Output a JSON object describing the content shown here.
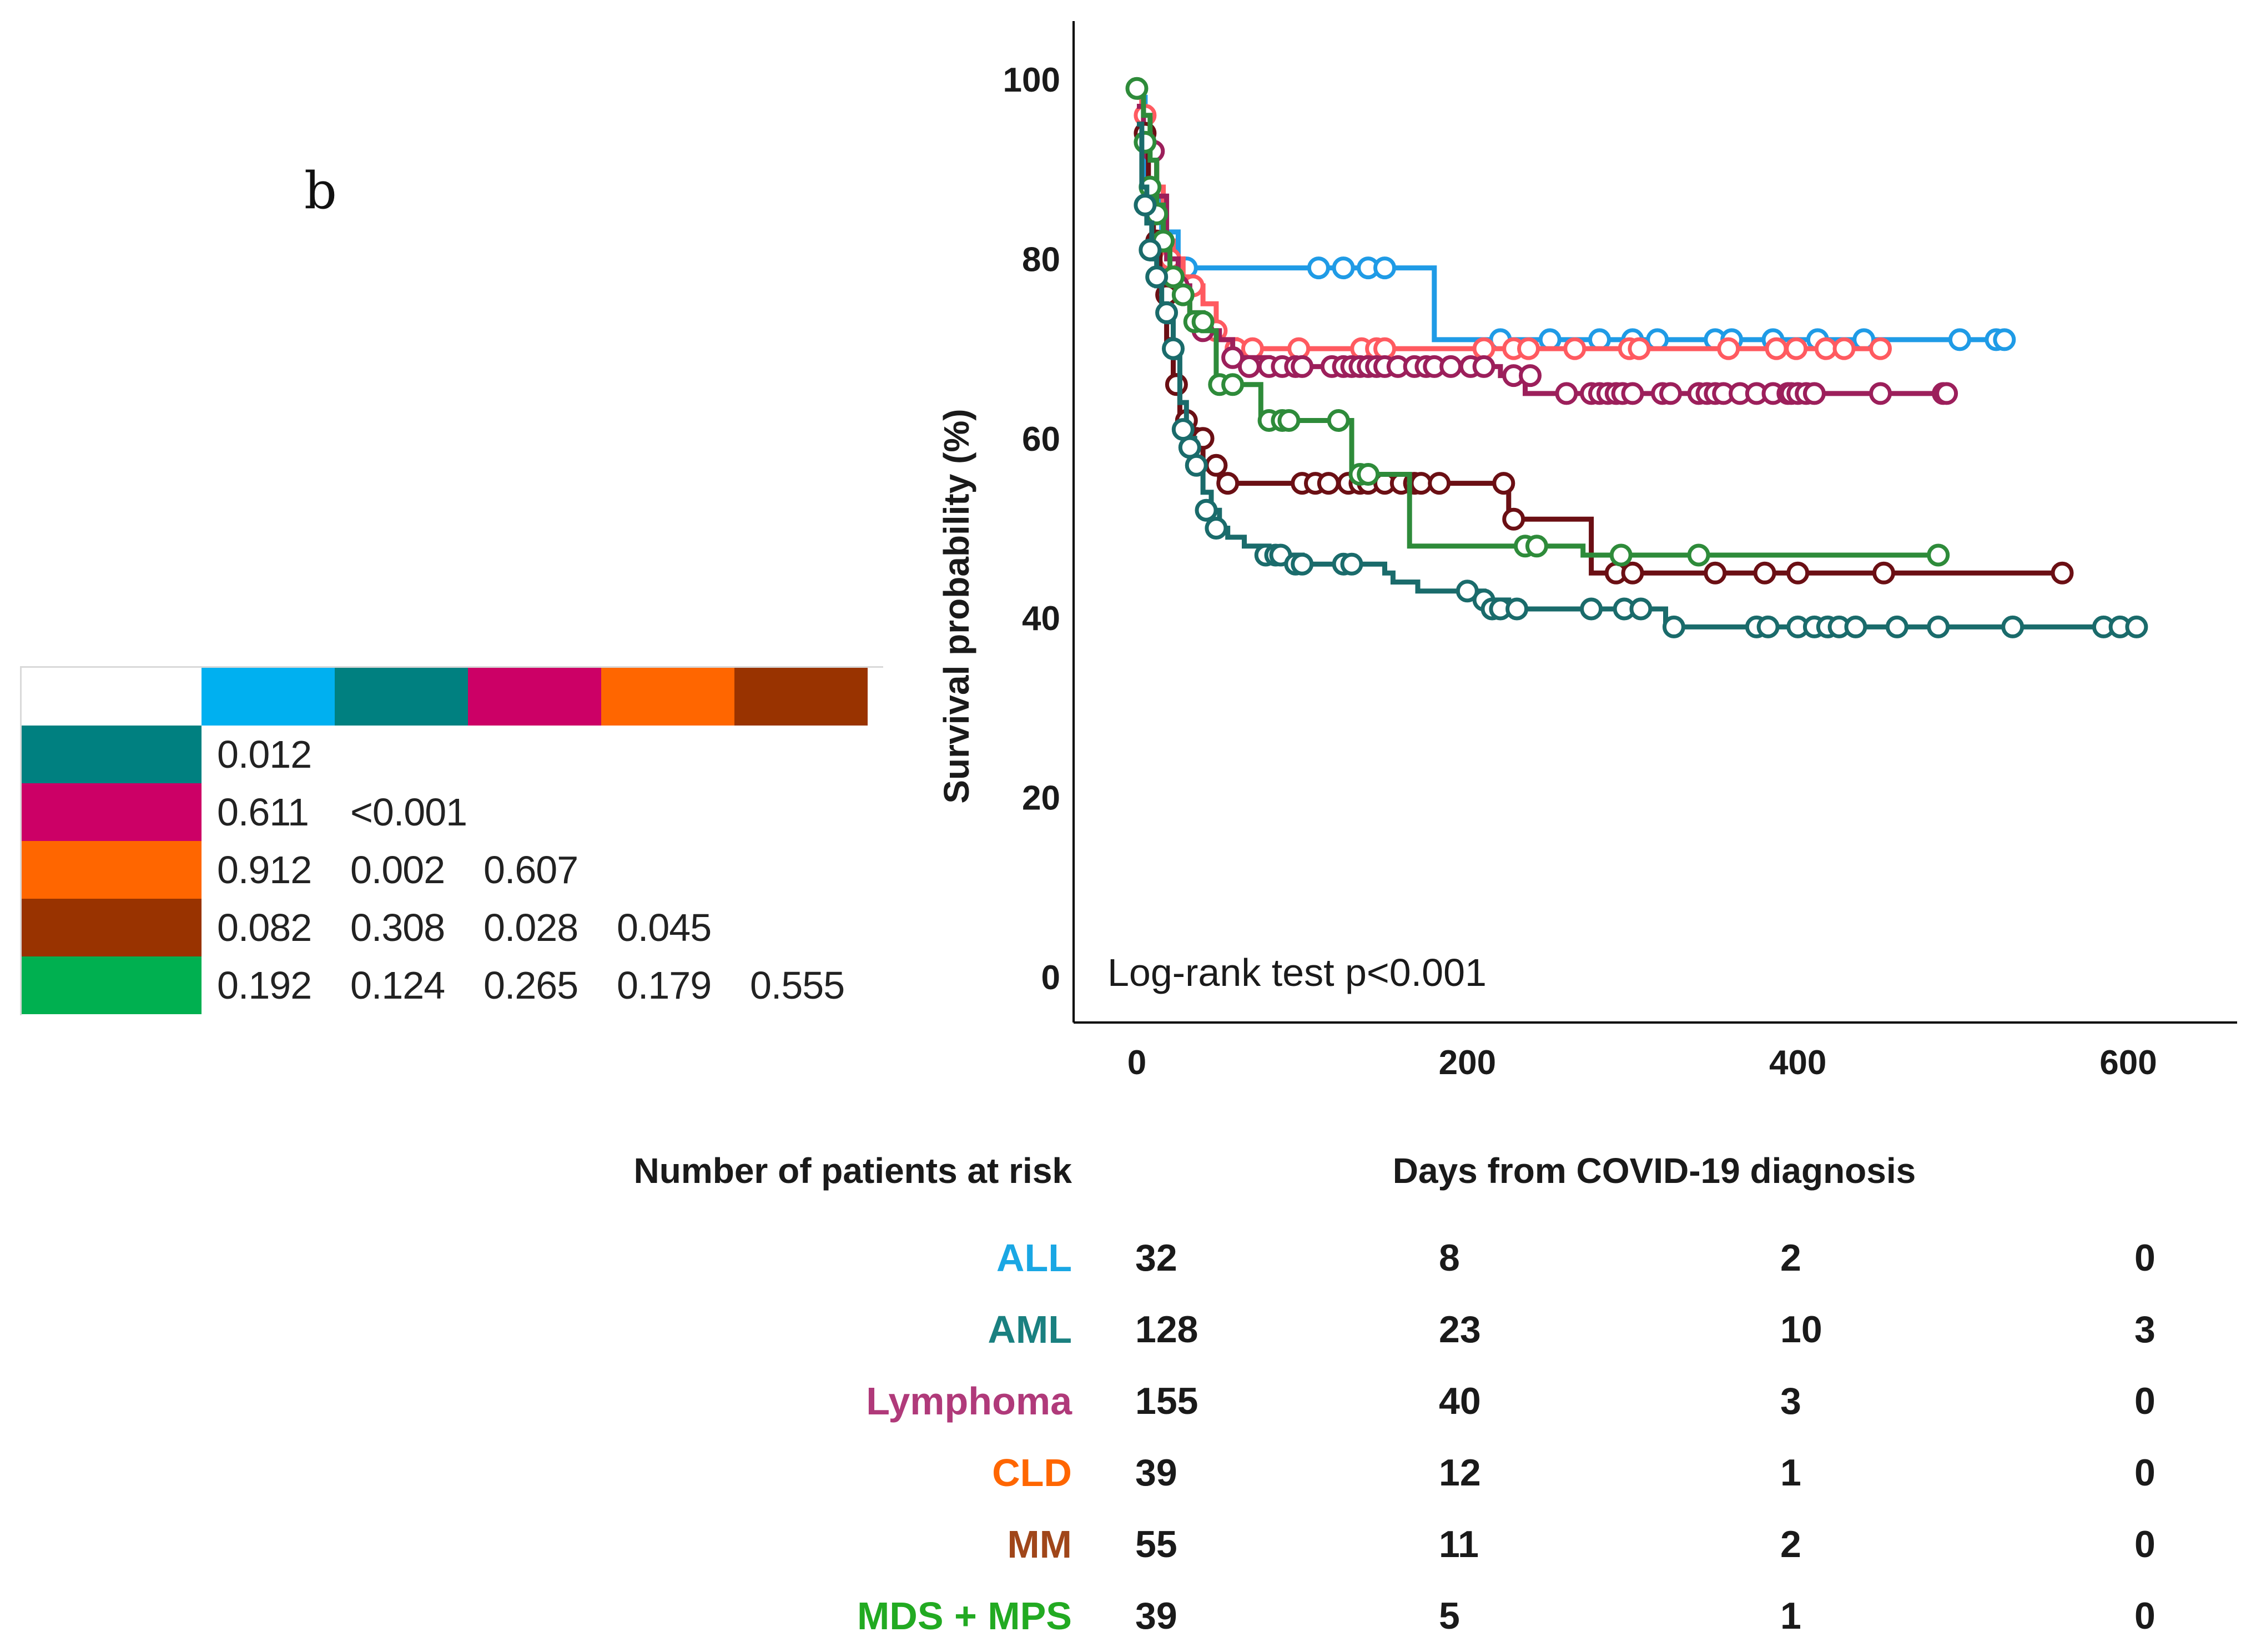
{
  "panel_label": "b",
  "colors": {
    "ALL": "#1f9be6",
    "AML": "#1a6b6b",
    "Lymphoma": "#9c1f5b",
    "CLD": "#ff5a60",
    "MM": "#6b0f14",
    "MDS_MPS": "#2e8b3a",
    "label_ALL": "#1aa7e4",
    "label_AML": "#1a8080",
    "label_Lymphoma": "#b03a7a",
    "label_CLD": "#ff6600",
    "label_MM": "#a0461a",
    "label_MDS_MPS": "#22aa22"
  },
  "pvalue_matrix": {
    "column_swatches": [
      "#00b0f0",
      "#008080",
      "#cc0066",
      "#ff6600",
      "#993300"
    ],
    "row_swatches": [
      "#008080",
      "#cc0066",
      "#ff6600",
      "#993300",
      "#00b050"
    ],
    "rows": [
      [
        "0.012"
      ],
      [
        "0.611",
        "<0.001"
      ],
      [
        "0.912",
        "0.002",
        "0.607"
      ],
      [
        "0.082",
        "0.308",
        "0.028",
        "0.045"
      ],
      [
        "0.192",
        "0.124",
        "0.265",
        "0.179",
        "0.555"
      ]
    ]
  },
  "chart_data": {
    "type": "line",
    "subtype": "kaplan-meier",
    "title": "",
    "ylabel": "Survival probability (%)",
    "xlabel": "Days from COVID-19 diagnosis",
    "xlim": [
      -40,
      660
    ],
    "ylim": [
      0,
      105
    ],
    "xticks": [
      0,
      200,
      400,
      600
    ],
    "yticks": [
      0,
      20,
      40,
      60,
      80,
      100
    ],
    "annotation": "Log-rank test p<0.001",
    "series": [
      {
        "name": "ALL",
        "color_key": "ALL",
        "steps": [
          [
            0,
            98
          ],
          [
            5,
            87
          ],
          [
            15,
            83
          ],
          [
            25,
            79
          ],
          [
            180,
            79
          ],
          [
            180,
            71
          ],
          [
            525,
            71
          ]
        ],
        "censors": [
          [
            30,
            79
          ],
          [
            110,
            79
          ],
          [
            125,
            79
          ],
          [
            140,
            79
          ],
          [
            150,
            79
          ],
          [
            220,
            71
          ],
          [
            250,
            71
          ],
          [
            280,
            71
          ],
          [
            300,
            71
          ],
          [
            315,
            71
          ],
          [
            350,
            71
          ],
          [
            360,
            71
          ],
          [
            385,
            71
          ],
          [
            412,
            71
          ],
          [
            440,
            71
          ],
          [
            498,
            71
          ],
          [
            520,
            71
          ],
          [
            525,
            71
          ]
        ]
      },
      {
        "name": "CLD",
        "color_key": "CLD",
        "steps": [
          [
            0,
            98
          ],
          [
            3,
            96
          ],
          [
            8,
            92
          ],
          [
            12,
            88
          ],
          [
            16,
            82
          ],
          [
            22,
            80
          ],
          [
            28,
            78
          ],
          [
            34,
            77
          ],
          [
            40,
            75
          ],
          [
            48,
            72
          ],
          [
            52,
            71
          ],
          [
            60,
            70
          ],
          [
            450,
            70
          ]
        ],
        "censors": [
          [
            5,
            96
          ],
          [
            20,
            80
          ],
          [
            34,
            77
          ],
          [
            48,
            72
          ],
          [
            60,
            70
          ],
          [
            70,
            70
          ],
          [
            98,
            70
          ],
          [
            136,
            70
          ],
          [
            145,
            70
          ],
          [
            150,
            70
          ],
          [
            210,
            70
          ],
          [
            228,
            70
          ],
          [
            237,
            70
          ],
          [
            265,
            70
          ],
          [
            298,
            70
          ],
          [
            304,
            70
          ],
          [
            358,
            70
          ],
          [
            387,
            70
          ],
          [
            399,
            70
          ],
          [
            417,
            70
          ],
          [
            428,
            70
          ],
          [
            450,
            70
          ]
        ]
      },
      {
        "name": "Lymphoma",
        "color_key": "Lymphoma",
        "steps": [
          [
            0,
            97
          ],
          [
            4,
            94
          ],
          [
            8,
            91
          ],
          [
            12,
            87
          ],
          [
            18,
            80
          ],
          [
            25,
            77
          ],
          [
            32,
            74
          ],
          [
            40,
            72
          ],
          [
            50,
            71
          ],
          [
            58,
            69
          ],
          [
            80,
            68
          ],
          [
            220,
            68
          ],
          [
            220,
            67
          ],
          [
            235,
            67
          ],
          [
            235,
            65
          ],
          [
            490,
            65
          ]
        ],
        "censors": [
          [
            10,
            92
          ],
          [
            25,
            77
          ],
          [
            40,
            72
          ],
          [
            58,
            69
          ],
          [
            68,
            68
          ],
          [
            80,
            68
          ],
          [
            88,
            68
          ],
          [
            96,
            68
          ],
          [
            100,
            68
          ],
          [
            118,
            68
          ],
          [
            125,
            68
          ],
          [
            130,
            68
          ],
          [
            135,
            68
          ],
          [
            140,
            68
          ],
          [
            145,
            68
          ],
          [
            150,
            68
          ],
          [
            158,
            68
          ],
          [
            168,
            68
          ],
          [
            175,
            68
          ],
          [
            180,
            68
          ],
          [
            190,
            68
          ],
          [
            202,
            68
          ],
          [
            210,
            68
          ],
          [
            228,
            67
          ],
          [
            238,
            67
          ],
          [
            260,
            65
          ],
          [
            275,
            65
          ],
          [
            280,
            65
          ],
          [
            285,
            65
          ],
          [
            290,
            65
          ],
          [
            294,
            65
          ],
          [
            300,
            65
          ],
          [
            318,
            65
          ],
          [
            323,
            65
          ],
          [
            340,
            65
          ],
          [
            345,
            65
          ],
          [
            350,
            65
          ],
          [
            355,
            65
          ],
          [
            365,
            65
          ],
          [
            375,
            65
          ],
          [
            385,
            65
          ],
          [
            394,
            65
          ],
          [
            396,
            65
          ],
          [
            400,
            65
          ],
          [
            405,
            65
          ],
          [
            410,
            65
          ],
          [
            450,
            65
          ],
          [
            488,
            65
          ],
          [
            490,
            65
          ]
        ]
      },
      {
        "name": "MM",
        "color_key": "MM",
        "steps": [
          [
            0,
            95
          ],
          [
            3,
            93
          ],
          [
            7,
            86
          ],
          [
            10,
            82
          ],
          [
            14,
            76
          ],
          [
            18,
            71
          ],
          [
            22,
            67
          ],
          [
            26,
            62
          ],
          [
            30,
            60
          ],
          [
            40,
            57
          ],
          [
            50,
            55
          ],
          [
            225,
            55
          ],
          [
            225,
            51
          ],
          [
            275,
            51
          ],
          [
            275,
            45
          ],
          [
            560,
            45
          ]
        ],
        "censors": [
          [
            5,
            94
          ],
          [
            12,
            82
          ],
          [
            18,
            76
          ],
          [
            24,
            66
          ],
          [
            30,
            62
          ],
          [
            36,
            60
          ],
          [
            40,
            60
          ],
          [
            48,
            57
          ],
          [
            55,
            55
          ],
          [
            100,
            55
          ],
          [
            108,
            55
          ],
          [
            116,
            55
          ],
          [
            128,
            55
          ],
          [
            135,
            55
          ],
          [
            140,
            55
          ],
          [
            150,
            55
          ],
          [
            160,
            55
          ],
          [
            168,
            55
          ],
          [
            172,
            55
          ],
          [
            183,
            55
          ],
          [
            222,
            55
          ],
          [
            228,
            51
          ],
          [
            290,
            45
          ],
          [
            300,
            45
          ],
          [
            350,
            45
          ],
          [
            380,
            45
          ],
          [
            400,
            45
          ],
          [
            452,
            45
          ],
          [
            560,
            45
          ]
        ]
      },
      {
        "name": "MDS + MPS",
        "color_key": "MDS_MPS",
        "steps": [
          [
            0,
            99
          ],
          [
            4,
            96
          ],
          [
            8,
            91
          ],
          [
            12,
            86
          ],
          [
            16,
            81
          ],
          [
            20,
            78
          ],
          [
            25,
            76
          ],
          [
            32,
            74
          ],
          [
            40,
            72
          ],
          [
            48,
            66
          ],
          [
            75,
            66
          ],
          [
            75,
            62
          ],
          [
            130,
            62
          ],
          [
            130,
            56
          ],
          [
            165,
            56
          ],
          [
            165,
            48
          ],
          [
            270,
            48
          ],
          [
            270,
            47
          ],
          [
            485,
            47
          ]
        ],
        "censors": [
          [
            0,
            99
          ],
          [
            5,
            93
          ],
          [
            8,
            88
          ],
          [
            12,
            85
          ],
          [
            16,
            82
          ],
          [
            22,
            78
          ],
          [
            28,
            76
          ],
          [
            35,
            73
          ],
          [
            40,
            73
          ],
          [
            50,
            66
          ],
          [
            58,
            66
          ],
          [
            80,
            62
          ],
          [
            88,
            62
          ],
          [
            92,
            62
          ],
          [
            122,
            62
          ],
          [
            135,
            56
          ],
          [
            140,
            56
          ],
          [
            235,
            48
          ],
          [
            242,
            48
          ],
          [
            293,
            47
          ],
          [
            340,
            47
          ],
          [
            485,
            47
          ]
        ]
      },
      {
        "name": "AML",
        "color_key": "AML",
        "steps": [
          [
            0,
            95
          ],
          [
            3,
            88
          ],
          [
            6,
            84
          ],
          [
            9,
            80
          ],
          [
            12,
            77
          ],
          [
            15,
            75
          ],
          [
            18,
            73
          ],
          [
            22,
            69
          ],
          [
            26,
            64
          ],
          [
            30,
            60
          ],
          [
            35,
            57
          ],
          [
            40,
            54
          ],
          [
            45,
            52
          ],
          [
            50,
            50
          ],
          [
            55,
            49
          ],
          [
            65,
            48
          ],
          [
            80,
            47
          ],
          [
            100,
            46
          ],
          [
            130,
            46
          ],
          [
            150,
            45
          ],
          [
            155,
            44
          ],
          [
            165,
            44
          ],
          [
            170,
            43
          ],
          [
            200,
            43
          ],
          [
            210,
            42
          ],
          [
            225,
            41
          ],
          [
            270,
            41
          ],
          [
            320,
            41
          ],
          [
            320,
            39
          ],
          [
            605,
            39
          ]
        ],
        "censors": [
          [
            5,
            86
          ],
          [
            8,
            81
          ],
          [
            12,
            78
          ],
          [
            18,
            74
          ],
          [
            22,
            70
          ],
          [
            28,
            61
          ],
          [
            32,
            59
          ],
          [
            36,
            57
          ],
          [
            42,
            52
          ],
          [
            48,
            50
          ],
          [
            78,
            47
          ],
          [
            84,
            47
          ],
          [
            87,
            47
          ],
          [
            96,
            46
          ],
          [
            100,
            46
          ],
          [
            125,
            46
          ],
          [
            130,
            46
          ],
          [
            200,
            43
          ],
          [
            210,
            42
          ],
          [
            215,
            41
          ],
          [
            220,
            41
          ],
          [
            230,
            41
          ],
          [
            275,
            41
          ],
          [
            295,
            41
          ],
          [
            305,
            41
          ],
          [
            325,
            39
          ],
          [
            375,
            39
          ],
          [
            382,
            39
          ],
          [
            400,
            39
          ],
          [
            410,
            39
          ],
          [
            418,
            39
          ],
          [
            425,
            39
          ],
          [
            435,
            39
          ],
          [
            460,
            39
          ],
          [
            485,
            39
          ],
          [
            530,
            39
          ],
          [
            585,
            39
          ],
          [
            595,
            39
          ],
          [
            605,
            39
          ]
        ]
      }
    ]
  },
  "risk_table": {
    "title": "Number of patients at risk",
    "rows": [
      {
        "label": "ALL",
        "color_key": "label_ALL",
        "values": [
          "32",
          "8",
          "2",
          "0"
        ]
      },
      {
        "label": "AML",
        "color_key": "label_AML",
        "values": [
          "128",
          "23",
          "10",
          "3"
        ]
      },
      {
        "label": "Lymphoma",
        "color_key": "label_Lymphoma",
        "values": [
          "155",
          "40",
          "3",
          "0"
        ]
      },
      {
        "label": "CLD",
        "color_key": "label_CLD",
        "values": [
          "39",
          "12",
          "1",
          "0"
        ]
      },
      {
        "label": "MM",
        "color_key": "label_MM",
        "values": [
          "55",
          "11",
          "2",
          "0"
        ]
      },
      {
        "label": "MDS + MPS",
        "color_key": "label_MDS_MPS",
        "values": [
          "39",
          "5",
          "1",
          "0"
        ]
      }
    ]
  }
}
